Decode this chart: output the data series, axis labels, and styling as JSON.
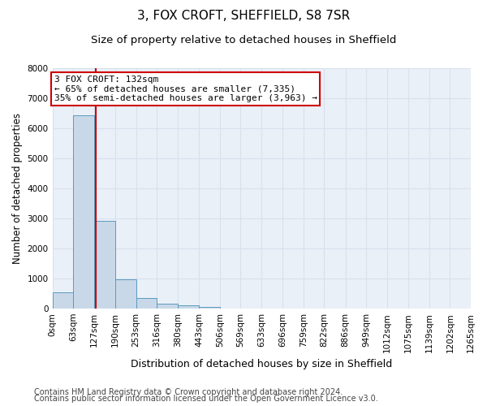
{
  "title": "3, FOX CROFT, SHEFFIELD, S8 7SR",
  "subtitle": "Size of property relative to detached houses in Sheffield",
  "xlabel": "Distribution of detached houses by size in Sheffield",
  "ylabel": "Number of detached properties",
  "footer_line1": "Contains HM Land Registry data © Crown copyright and database right 2024.",
  "footer_line2": "Contains public sector information licensed under the Open Government Licence v3.0.",
  "bar_edges": [
    0,
    63,
    127,
    190,
    253,
    316,
    380,
    443,
    506,
    569,
    633,
    696,
    759,
    822,
    886,
    949,
    1012,
    1075,
    1139,
    1202,
    1265
  ],
  "bar_values": [
    530,
    6430,
    2920,
    970,
    340,
    160,
    100,
    60,
    0,
    0,
    0,
    0,
    0,
    0,
    0,
    0,
    0,
    0,
    0,
    0
  ],
  "bar_color": "#c8d8e8",
  "bar_edge_color": "#5a9abf",
  "property_size": 132,
  "property_line_color": "#cc0000",
  "annotation_text": "3 FOX CROFT: 132sqm\n← 65% of detached houses are smaller (7,335)\n35% of semi-detached houses are larger (3,963) →",
  "annotation_box_color": "#cc0000",
  "ylim": [
    0,
    8000
  ],
  "yticks": [
    0,
    1000,
    2000,
    3000,
    4000,
    5000,
    6000,
    7000,
    8000
  ],
  "background_color": "#eaf0f8",
  "grid_color": "#d8e0ec",
  "title_fontsize": 11,
  "subtitle_fontsize": 9.5,
  "ylabel_fontsize": 8.5,
  "xlabel_fontsize": 9,
  "tick_fontsize": 7.5,
  "footer_fontsize": 7,
  "ann_fontsize": 8
}
